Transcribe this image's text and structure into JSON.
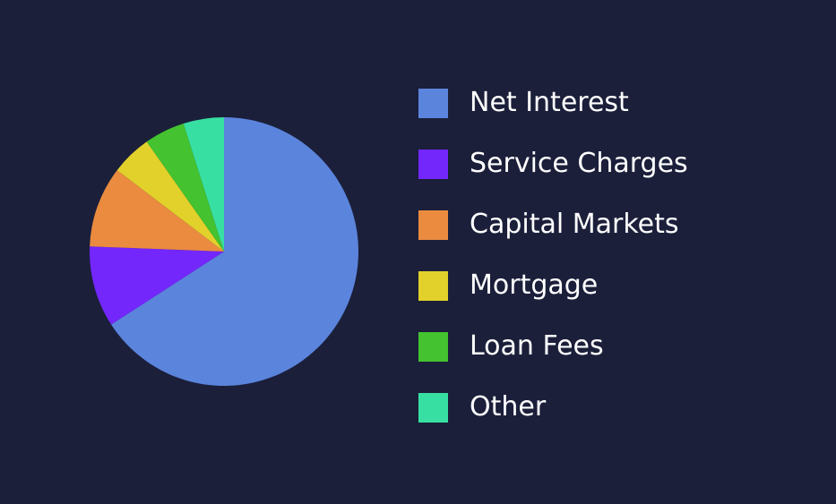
{
  "chart_data": {
    "type": "pie",
    "title": "",
    "slices": [
      {
        "label": "Net Interest",
        "value": 67.5,
        "color": "#5b84dc"
      },
      {
        "label": "Service Charges",
        "value": 10,
        "color": "#7327fb"
      },
      {
        "label": "Capital Markets",
        "value": 10,
        "color": "#ea8b40"
      },
      {
        "label": "Mortgage",
        "value": 5,
        "color": "#e2d12a"
      },
      {
        "label": "Loan Fees",
        "value": 5,
        "color": "#44c22f"
      },
      {
        "label": "Other",
        "value": 5,
        "color": "#38dfa2"
      }
    ],
    "legend": "right",
    "start_angle": "top",
    "direction": "clockwise"
  }
}
